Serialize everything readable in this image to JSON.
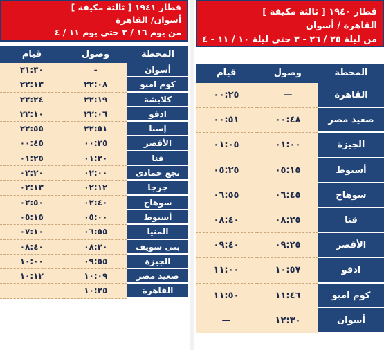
{
  "left": {
    "title_line1": "قطار ١٩٤١ [ ثالثة مكيفة ]",
    "title_line2": "أسوان/ القاهرة",
    "title_line3": "من يوم ١٦ / ٣ حتى يوم ١١ / ٤",
    "col_station": "المحطة",
    "col_arrival": "وصول",
    "col_departure": "قيام",
    "rows": [
      {
        "station": "أسوان",
        "arrival": "-",
        "departure": "٢١:٣٠"
      },
      {
        "station": "كوم امبو",
        "arrival": "٢٢:٠٨",
        "departure": "٢٢:١٣"
      },
      {
        "station": "كلابشة",
        "arrival": "٢٢:١٩",
        "departure": "٢٢:٢٤"
      },
      {
        "station": "ادفو",
        "arrival": "٢٢:٠٦",
        "departure": "٢٢:١٠"
      },
      {
        "station": "إسنا",
        "arrival": "٢٢:٥١",
        "departure": "٢٢:٥٥"
      },
      {
        "station": "الأقصر",
        "arrival": "٠٠:٢٥",
        "departure": "٠٠:٤٥"
      },
      {
        "station": "قنا",
        "arrival": "٠١:٢٠",
        "departure": "٠١:٢٥"
      },
      {
        "station": "نجع حمادى",
        "arrival": "٠٢:٠٠",
        "departure": "٠٢:٢٠"
      },
      {
        "station": "جرجا",
        "arrival": "٠٢:١٢",
        "departure": "٠٢:١٣"
      },
      {
        "station": "سوهاج",
        "arrival": "٠٢:٤٠",
        "departure": "٠٢:٥٠"
      },
      {
        "station": "أسيوط",
        "arrival": "٠٥:٠٠",
        "departure": "٠٥:١٥"
      },
      {
        "station": "المنيا",
        "arrival": "٠٦:٥٥",
        "departure": "٠٧:١٠"
      },
      {
        "station": "بنى سويف",
        "arrival": "٠٨:٢٠",
        "departure": "٠٨:٤٠"
      },
      {
        "station": "الجيزة",
        "arrival": "٠٩:٥٥",
        "departure": "١٠:٠٠"
      },
      {
        "station": "صعيد مصر",
        "arrival": "١٠:٠٩",
        "departure": "١٠:١٢"
      },
      {
        "station": "القاهرة",
        "arrival": "١٠:٢٥",
        "departure": ""
      }
    ]
  },
  "right": {
    "title_line1": "قطار ١٩٤٠ [ ثالثة مكيفة ]",
    "title_line2": "القاهرة / أسوان",
    "title_line3": "من ليلة ٢٥ / ٢٦ - ٣ حتى ليلة ١٠ / ١١ - ٤",
    "col_station": "المحطة",
    "col_arrival": "وصول",
    "col_departure": "قيام",
    "rows": [
      {
        "station": "القاهرة",
        "arrival": "—",
        "departure": "٠٠:٢٥"
      },
      {
        "station": "صعيد مصر",
        "arrival": "٠٠:٤٨",
        "departure": "٠٠:٥١"
      },
      {
        "station": "الجيزة",
        "arrival": "٠١:٠٠",
        "departure": "٠١:٠٥"
      },
      {
        "station": "أسيوط",
        "arrival": "٠٥:١٥",
        "departure": "٠٥:٢٥"
      },
      {
        "station": "سوهاج",
        "arrival": "٠٦:٤٥",
        "departure": "٠٦:٥٥"
      },
      {
        "station": "قنا",
        "arrival": "٠٨:٢٥",
        "departure": "٠٨:٤٠"
      },
      {
        "station": "الأقصر",
        "arrival": "٠٩:٢٥",
        "departure": "٠٩:٤٠"
      },
      {
        "station": "ادفو",
        "arrival": "١٠:٥٧",
        "departure": "١١:٠٠"
      },
      {
        "station": "كوم امبو",
        "arrival": "١١:٤٦",
        "departure": "١١:٥٠"
      },
      {
        "station": "أسوان",
        "arrival": "١٢:٣٠",
        "departure": "—"
      }
    ]
  }
}
